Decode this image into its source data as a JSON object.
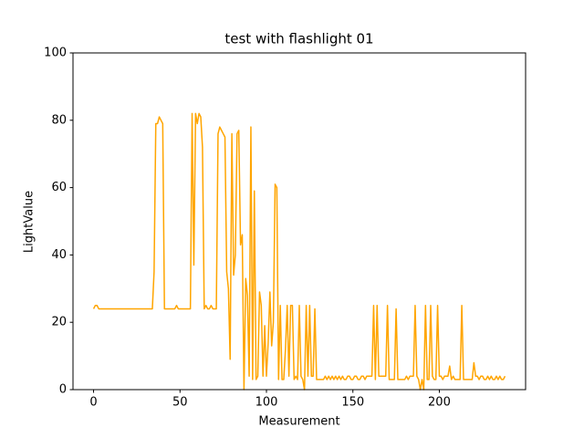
{
  "chart_data": {
    "type": "line",
    "title": "test with flashlight 01",
    "xlabel": "Measurement",
    "ylabel": "LightValue",
    "color": "orange",
    "x": [
      0,
      1,
      2,
      3,
      4,
      5,
      6,
      7,
      8,
      9,
      10,
      11,
      12,
      13,
      14,
      15,
      16,
      17,
      18,
      19,
      20,
      21,
      22,
      23,
      24,
      25,
      26,
      27,
      28,
      29,
      30,
      31,
      32,
      33,
      34,
      35,
      36,
      37,
      38,
      39,
      40,
      41,
      42,
      43,
      44,
      45,
      46,
      47,
      48,
      49,
      50,
      51,
      52,
      53,
      54,
      55,
      56,
      57,
      58,
      59,
      60,
      61,
      62,
      63,
      64,
      65,
      66,
      67,
      68,
      69,
      70,
      71,
      72,
      73,
      74,
      75,
      76,
      77,
      78,
      79,
      80,
      81,
      82,
      83,
      84,
      85,
      86,
      87,
      88,
      89,
      90,
      91,
      92,
      93,
      94,
      95,
      96,
      97,
      98,
      99,
      100,
      101,
      102,
      103,
      104,
      105,
      106,
      107,
      108,
      109,
      110,
      111,
      112,
      113,
      114,
      115,
      116,
      117,
      118,
      119,
      120,
      121,
      122,
      123,
      124,
      125,
      126,
      127,
      128,
      129,
      130,
      131,
      132,
      133,
      134,
      135,
      136,
      137,
      138,
      139,
      140,
      141,
      142,
      143,
      144,
      145,
      146,
      147,
      148,
      149,
      150,
      151,
      152,
      153,
      154,
      155,
      156,
      157,
      158,
      159,
      160,
      161,
      162,
      163,
      164,
      165,
      166,
      167,
      168,
      169,
      170,
      171,
      172,
      173,
      174,
      175,
      176,
      177,
      178,
      179,
      180,
      181,
      182,
      183,
      184,
      185,
      186,
      187,
      188,
      189,
      190,
      191,
      192,
      193,
      194,
      195,
      196,
      197,
      198,
      199,
      200,
      201,
      202,
      203,
      204,
      205,
      206,
      207,
      208,
      209,
      210,
      211,
      212,
      213,
      214,
      215,
      216,
      217,
      218,
      219,
      220,
      221,
      222,
      223,
      224,
      225,
      226,
      227,
      228,
      229,
      230,
      231,
      232,
      233,
      234,
      235,
      236,
      237,
      238
    ],
    "values": [
      24,
      25,
      25,
      24,
      24,
      24,
      24,
      24,
      24,
      24,
      24,
      24,
      24,
      24,
      24,
      24,
      24,
      24,
      24,
      24,
      24,
      24,
      24,
      24,
      24,
      24,
      24,
      24,
      24,
      24,
      24,
      24,
      24,
      24,
      24,
      35,
      79,
      79,
      81,
      80,
      79,
      24,
      24,
      24,
      24,
      24,
      24,
      24,
      25,
      24,
      24,
      24,
      24,
      24,
      24,
      24,
      24,
      82,
      37,
      82,
      79,
      82,
      81,
      72,
      24,
      25,
      24,
      24,
      25,
      24,
      24,
      24,
      76,
      78,
      77,
      76,
      75,
      35,
      30,
      9,
      76,
      34,
      40,
      76,
      77,
      43,
      46,
      0,
      33,
      28,
      4,
      78,
      3,
      59,
      3,
      4,
      29,
      25,
      4,
      19,
      4,
      14,
      29,
      13,
      20,
      61,
      60,
      3,
      25,
      3,
      3,
      12,
      25,
      4,
      25,
      25,
      3,
      4,
      3,
      25,
      4,
      3,
      0,
      25,
      4,
      25,
      4,
      4,
      24,
      3,
      3,
      3,
      3,
      3,
      4,
      3,
      4,
      3,
      4,
      3,
      4,
      3,
      4,
      3,
      4,
      3,
      3,
      4,
      4,
      3,
      3,
      4,
      4,
      3,
      3,
      4,
      4,
      3,
      4,
      4,
      4,
      4,
      25,
      3,
      25,
      4,
      4,
      4,
      4,
      4,
      25,
      3,
      3,
      3,
      3,
      24,
      3,
      3,
      3,
      3,
      3,
      4,
      3,
      4,
      4,
      4,
      25,
      4,
      3,
      0,
      3,
      0,
      25,
      3,
      3,
      25,
      4,
      3,
      3,
      25,
      4,
      4,
      3,
      4,
      4,
      4,
      7,
      3,
      4,
      3,
      3,
      3,
      3,
      25,
      3,
      3,
      3,
      3,
      3,
      3,
      8,
      4,
      4,
      3,
      4,
      4,
      3,
      3,
      4,
      3,
      4,
      3,
      3,
      4,
      3,
      4,
      3,
      3,
      4
    ],
    "xlim": [
      -11.9,
      249.9
    ],
    "ylim": [
      0,
      100
    ],
    "xticks": [
      0,
      50,
      100,
      150,
      200
    ],
    "yticks": [
      0,
      20,
      40,
      60,
      80,
      100
    ]
  }
}
